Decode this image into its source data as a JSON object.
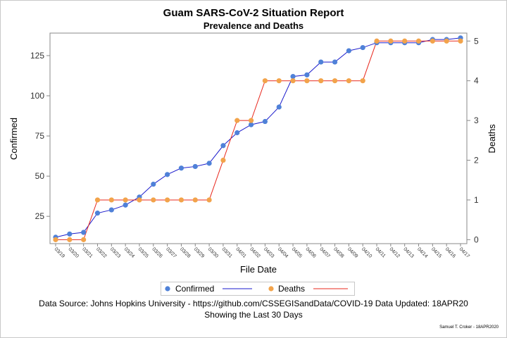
{
  "chart_data": {
    "type": "line",
    "title": "Guam SARS-CoV-2 Situation Report",
    "subtitle": "Prevalence and Deaths",
    "xlabel": "File Date",
    "ylabel_left": "Confirmed",
    "ylabel_right": "Deaths",
    "x": [
      "03/19",
      "03/20",
      "03/21",
      "03/22",
      "03/23",
      "03/24",
      "03/25",
      "03/26",
      "03/27",
      "03/28",
      "03/29",
      "03/30",
      "03/31",
      "04/01",
      "04/02",
      "04/03",
      "04/04",
      "04/05",
      "04/06",
      "04/07",
      "04/08",
      "04/09",
      "04/10",
      "04/11",
      "04/12",
      "04/13",
      "04/14",
      "04/15",
      "04/16",
      "04/17"
    ],
    "yticks_left": [
      25,
      50,
      75,
      100,
      125
    ],
    "yticks_right": [
      0,
      1,
      2,
      3,
      4,
      5
    ],
    "ylim_left": [
      8,
      139
    ],
    "ylim_right": [
      -0.1,
      5.2
    ],
    "series": [
      {
        "name": "Confirmed",
        "axis": "left",
        "marker_color": "#4f81d8",
        "line_color": "#1a1acc",
        "values": [
          12,
          14,
          15,
          27,
          29,
          32,
          37,
          45,
          51,
          55,
          56,
          58,
          69,
          77,
          82,
          84,
          93,
          112,
          113,
          121,
          121,
          128,
          130,
          133,
          133,
          133,
          133,
          135,
          135,
          136
        ]
      },
      {
        "name": "Deaths",
        "axis": "right",
        "marker_color": "#f2a34a",
        "line_color": "#e8281e",
        "values": [
          0,
          0,
          0,
          1,
          1,
          1,
          1,
          1,
          1,
          1,
          1,
          1,
          2,
          3,
          3,
          4,
          4,
          4,
          4,
          4,
          4,
          4,
          4,
          5,
          5,
          5,
          5,
          5,
          5,
          5
        ]
      }
    ],
    "grid": false,
    "legend_position": "bottom"
  },
  "footer": {
    "source": "Data Source: Johns Hopkins University - https://github.com/CSSEGISandData/COVID-19 Data Updated: 18APR20",
    "range": "Showing the Last 30 Days",
    "credit": "Samuel T. Croker - 18APR2020"
  }
}
